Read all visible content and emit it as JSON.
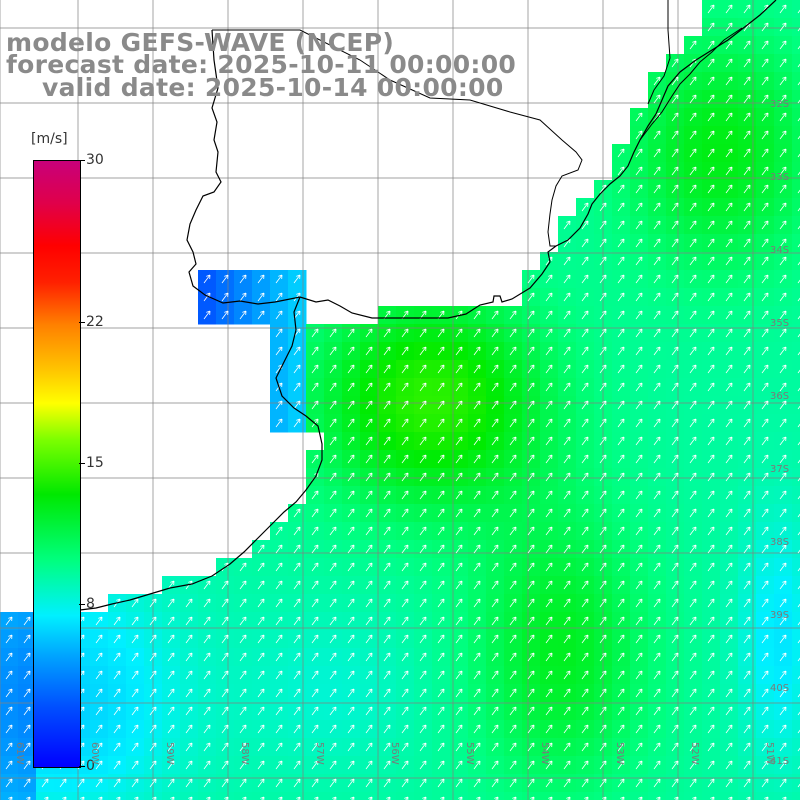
{
  "title": {
    "line1": "modelo GEFS-WAVE (NCEP)",
    "line2": "forecast date: 2025-10-11 00:00:00",
    "line3": "valid date: 2025-10-14 00:00:00"
  },
  "colorbar": {
    "unit": "[m/s]",
    "ticks": [
      {
        "label": "30",
        "value": 30
      },
      {
        "label": "22",
        "value": 22
      },
      {
        "label": "15",
        "value": 15
      },
      {
        "label": "8",
        "value": 8
      },
      {
        "label": "0",
        "value": 0
      }
    ],
    "colors": [
      "#0000ff",
      "#0050ff",
      "#00a0ff",
      "#00f0ff",
      "#00ff80",
      "#00e800",
      "#7cff00",
      "#ffff00",
      "#ffc000",
      "#ff8000",
      "#ff2000",
      "#ff0000",
      "#e0004a",
      "#c8007a"
    ]
  },
  "axes": {
    "lat_labels": [
      "32S",
      "33S",
      "34S",
      "35S",
      "36S",
      "37S",
      "38S",
      "39S",
      "40S",
      "41S"
    ],
    "lon_labels": [
      "61W",
      "60W",
      "59W",
      "58W",
      "57W",
      "56W",
      "55W",
      "54W",
      "53W",
      "52W",
      "51W"
    ]
  },
  "map": {
    "land_color": "#ffffff",
    "coast_color": "#000000",
    "grid_color": "#808080",
    "arrow_color": "#ffffff"
  }
}
